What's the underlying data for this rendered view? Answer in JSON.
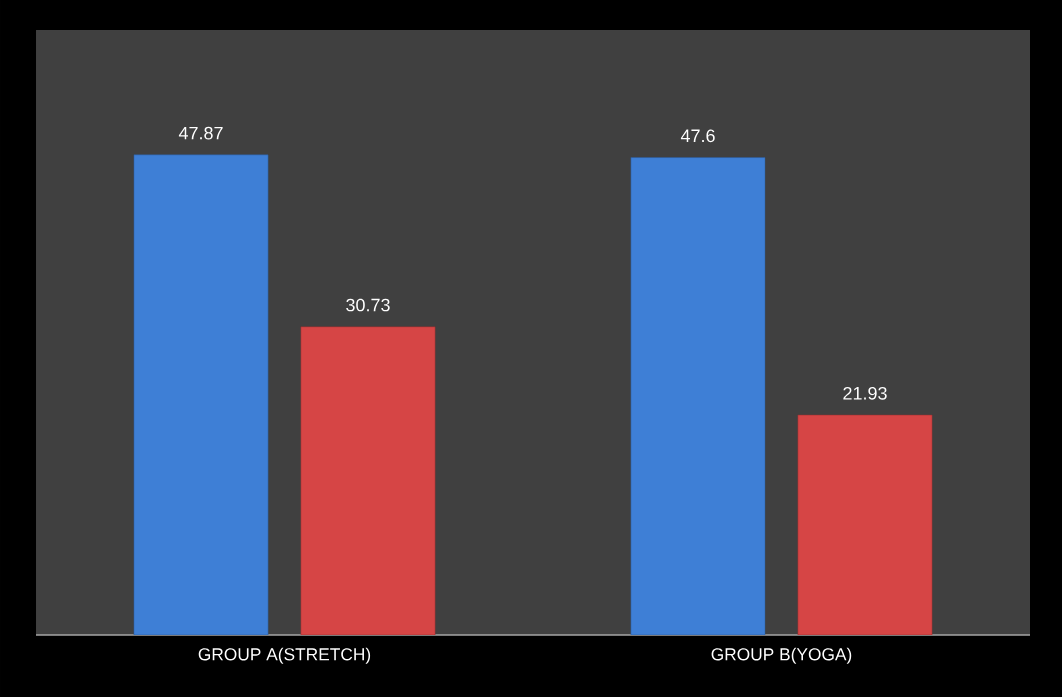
{
  "chart_data": {
    "type": "bar",
    "categories": [
      "GROUP A(STRETCH)",
      "GROUP B(YOGA)"
    ],
    "series": [
      {
        "color": "#3e7fd6",
        "values": [
          47.87,
          47.6
        ]
      },
      {
        "color": "#d64545",
        "values": [
          30.73,
          21.93
        ]
      }
    ],
    "data_labels": true
  }
}
